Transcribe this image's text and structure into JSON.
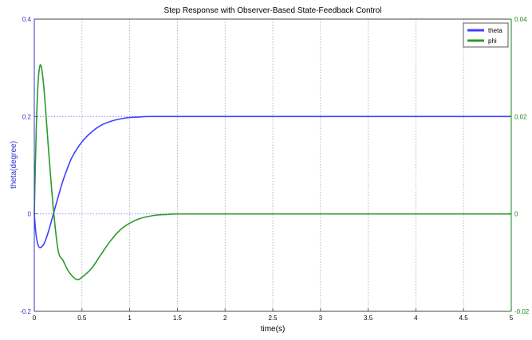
{
  "chart_data": {
    "type": "line",
    "title": "Step Response with Observer-Based State-Feedback Control",
    "xlabel": "time(s)",
    "ylabel_left": "theta(degree)",
    "ylabel_right": "",
    "xlim": [
      0,
      5
    ],
    "ylim_left": [
      -0.2,
      0.4
    ],
    "ylim_right": [
      -0.02,
      0.04
    ],
    "x_ticks": [
      "0",
      "0.5",
      "1",
      "1.5",
      "2",
      "2.5",
      "3",
      "3.5",
      "4",
      "4.5",
      "5"
    ],
    "y_left_ticks": [
      "-0.2",
      "0",
      "0.2",
      "0.4"
    ],
    "y_right_ticks": [
      "-0.02",
      "0",
      "0.02",
      "0.04"
    ],
    "grid": true,
    "legend_position": "top-right",
    "series": [
      {
        "name": "theta",
        "axis": "left",
        "color": "#4040ff",
        "x": [
          0,
          0.02,
          0.05,
          0.1,
          0.15,
          0.2,
          0.25,
          0.3,
          0.35,
          0.4,
          0.5,
          0.6,
          0.7,
          0.8,
          0.9,
          1.0,
          1.1,
          1.2,
          1.5,
          2.0,
          2.5,
          3.0,
          3.5,
          4.0,
          4.5,
          5.0
        ],
        "y": [
          0.0,
          -0.045,
          -0.068,
          -0.062,
          -0.035,
          0.0,
          0.035,
          0.068,
          0.095,
          0.118,
          0.148,
          0.168,
          0.182,
          0.19,
          0.195,
          0.198,
          0.199,
          0.2,
          0.2,
          0.2,
          0.2,
          0.2,
          0.2,
          0.2,
          0.2,
          0.2
        ]
      },
      {
        "name": "phi",
        "axis": "right",
        "color": "#2a9a2a",
        "x": [
          0,
          0.02,
          0.04,
          0.06,
          0.08,
          0.1,
          0.12,
          0.15,
          0.2,
          0.25,
          0.3,
          0.35,
          0.4,
          0.45,
          0.5,
          0.6,
          0.7,
          0.8,
          0.9,
          1.0,
          1.1,
          1.2,
          1.3,
          1.4,
          1.5,
          2.0,
          2.5,
          3.0,
          3.5,
          4.0,
          4.5,
          5.0
        ],
        "y": [
          0.0,
          0.017,
          0.027,
          0.0305,
          0.0295,
          0.026,
          0.021,
          0.013,
          0.001,
          -0.0075,
          -0.0095,
          -0.0115,
          -0.0128,
          -0.0135,
          -0.013,
          -0.0112,
          -0.0083,
          -0.0055,
          -0.0033,
          -0.0019,
          -0.001,
          -0.0005,
          -0.0002,
          -0.0001,
          0.0,
          0.0,
          0.0,
          0.0,
          0.0,
          0.0,
          0.0,
          0.0
        ]
      }
    ]
  }
}
